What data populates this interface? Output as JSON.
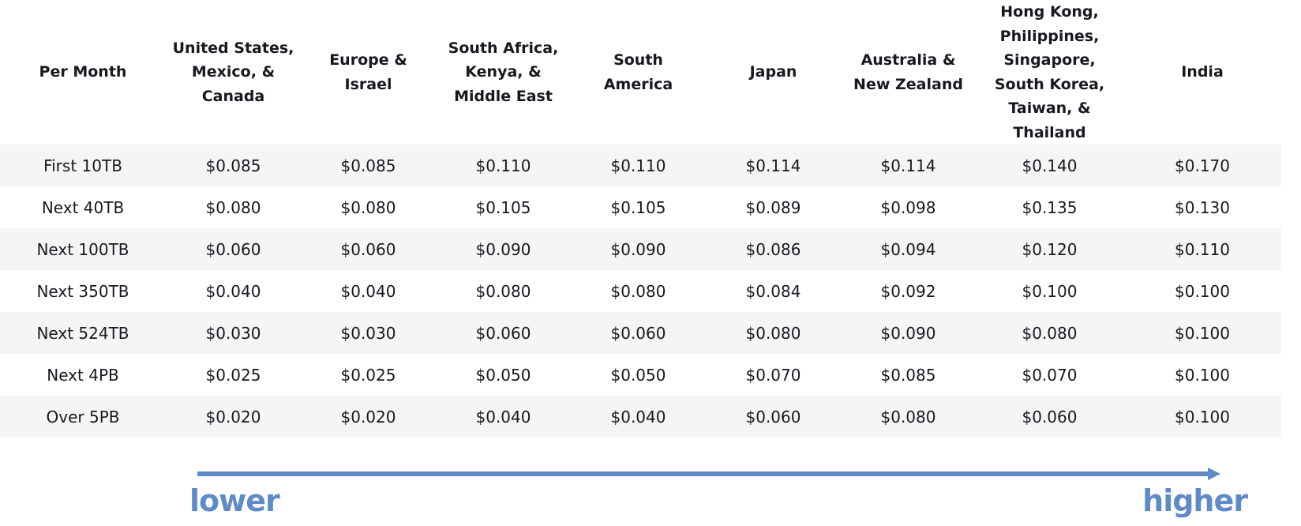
{
  "table": {
    "header": [
      "Per Month",
      "United States, Mexico, & Canada",
      "Europe & Israel",
      "South Africa, Kenya, & Middle East",
      "South America",
      "Japan",
      "Australia & New Zealand",
      "Hong Kong, Philippines, Singapore, South Korea, Taiwan, & Thailand",
      "India"
    ],
    "rows": [
      [
        "First 10TB",
        "$0.085",
        "$0.085",
        "$0.110",
        "$0.110",
        "$0.114",
        "$0.114",
        "$0.140",
        "$0.170"
      ],
      [
        "Next 40TB",
        "$0.080",
        "$0.080",
        "$0.105",
        "$0.105",
        "$0.089",
        "$0.098",
        "$0.135",
        "$0.130"
      ],
      [
        "Next 100TB",
        "$0.060",
        "$0.060",
        "$0.090",
        "$0.090",
        "$0.086",
        "$0.094",
        "$0.120",
        "$0.110"
      ],
      [
        "Next 350TB",
        "$0.040",
        "$0.040",
        "$0.080",
        "$0.080",
        "$0.084",
        "$0.092",
        "$0.100",
        "$0.100"
      ],
      [
        "Next 524TB",
        "$0.030",
        "$0.030",
        "$0.060",
        "$0.060",
        "$0.080",
        "$0.090",
        "$0.080",
        "$0.100"
      ],
      [
        "Next 4PB",
        "$0.025",
        "$0.025",
        "$0.050",
        "$0.050",
        "$0.070",
        "$0.085",
        "$0.070",
        "$0.100"
      ],
      [
        "Over 5PB",
        "$0.020",
        "$0.020",
        "$0.040",
        "$0.040",
        "$0.060",
        "$0.080",
        "$0.060",
        "$0.100"
      ]
    ]
  },
  "scale": {
    "lower_label": "lower",
    "higher_label": "higher",
    "color": "#5f8ac9"
  }
}
